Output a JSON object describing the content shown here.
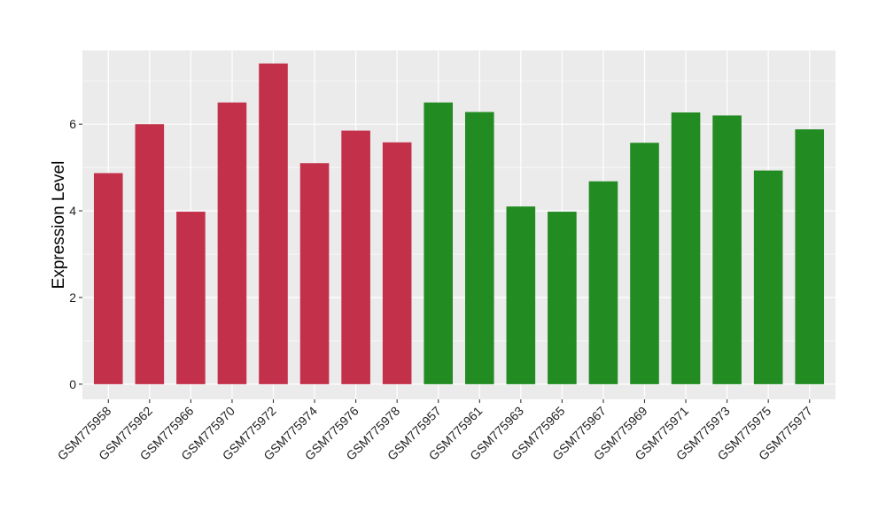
{
  "chart_data": {
    "type": "bar",
    "title": "",
    "xlabel": "",
    "ylabel": "Expression Level",
    "ylim": [
      -0.35,
      7.7
    ],
    "yticks": [
      0,
      2,
      4,
      6
    ],
    "grid": true,
    "legend": "none",
    "categories": [
      "GSM775958",
      "GSM775962",
      "GSM775966",
      "GSM775970",
      "GSM775972",
      "GSM775974",
      "GSM775976",
      "GSM775978",
      "GSM775957",
      "GSM775961",
      "GSM775963",
      "GSM775965",
      "GSM775967",
      "GSM775969",
      "GSM775971",
      "GSM775973",
      "GSM775975",
      "GSM775977"
    ],
    "values": [
      4.87,
      6.0,
      3.98,
      6.5,
      7.4,
      5.1,
      5.85,
      5.58,
      6.5,
      6.28,
      4.1,
      3.98,
      4.68,
      5.57,
      6.27,
      6.2,
      4.93,
      5.88
    ],
    "bar_colors": [
      "#c3304a",
      "#c3304a",
      "#c3304a",
      "#c3304a",
      "#c3304a",
      "#c3304a",
      "#c3304a",
      "#c3304a",
      "#228b22",
      "#228b22",
      "#228b22",
      "#228b22",
      "#228b22",
      "#228b22",
      "#228b22",
      "#228b22",
      "#228b22",
      "#228b22"
    ],
    "panel_color": "#ebebeb",
    "grid_color": "#ffffff"
  }
}
